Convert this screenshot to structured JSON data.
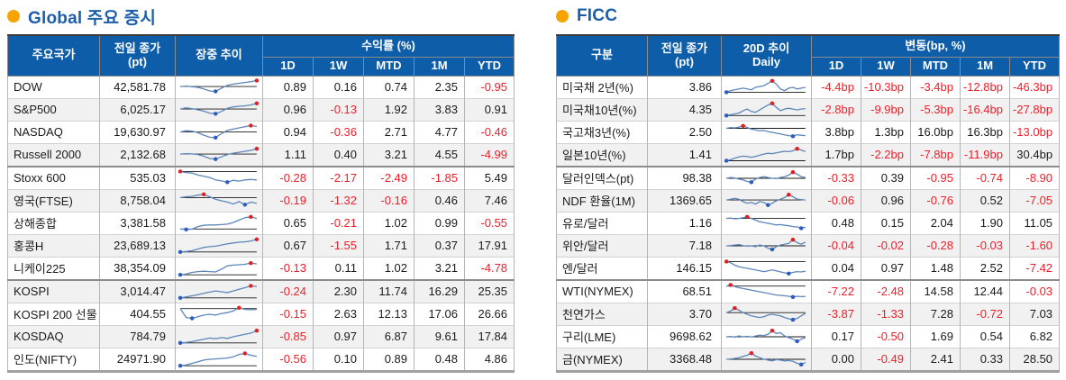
{
  "colors": {
    "header_bg": "#0e5da9",
    "title_blue": "#1c5ea9",
    "bullet_orange": "#f6a500",
    "negative_red": "#f01e28",
    "text_dark": "#1a1a1a",
    "row_shade": "#f1f1f1",
    "spark_line": "#5d86ba",
    "spark_ref": "#1a1a1a",
    "spark_max_dot": "#e02020",
    "spark_min_dot": "#2d5bbf"
  },
  "global": {
    "title": "Global 주요 증시",
    "header": {
      "name": "주요국가",
      "close_lines": [
        "전일 종가",
        "(pt)"
      ],
      "trend_lines": [
        "장중 추이"
      ],
      "group": "수익률 (%)",
      "periods": [
        "1D",
        "1W",
        "MTD",
        "1M",
        "YTD"
      ]
    },
    "rows": [
      {
        "name": "DOW",
        "close": "42,581.78",
        "vals": [
          "0.89",
          "0.16",
          "0.74",
          "2.35",
          "-0.95"
        ],
        "spark": [
          55,
          58,
          54,
          50,
          40,
          28,
          25,
          45,
          62,
          70,
          75,
          80,
          85,
          92
        ]
      },
      {
        "name": "S&P500",
        "close": "6,025.17",
        "vals": [
          "0.96",
          "-0.13",
          "1.92",
          "3.83",
          "0.91"
        ],
        "spark": [
          55,
          62,
          58,
          50,
          42,
          30,
          26,
          40,
          60,
          68,
          72,
          75,
          80,
          90
        ]
      },
      {
        "name": "NASDAQ",
        "close": "19,630.97",
        "vals": [
          "0.94",
          "-0.36",
          "2.71",
          "4.77",
          "-0.46"
        ],
        "spark": [
          52,
          60,
          58,
          48,
          33,
          20,
          18,
          42,
          62,
          70,
          78,
          85,
          92,
          86
        ]
      },
      {
        "name": "Russell 2000",
        "close": "2,132.68",
        "vals": [
          "1.11",
          "0.40",
          "3.21",
          "4.55",
          "-4.99"
        ],
        "spark": [
          55,
          58,
          56,
          52,
          42,
          28,
          24,
          38,
          52,
          60,
          66,
          72,
          78,
          88
        ]
      },
      {
        "name": "Stoxx 600",
        "close": "535.03",
        "vals": [
          "-0.28",
          "-2.17",
          "-2.49",
          "-1.85",
          "5.49"
        ],
        "spark": [
          92,
          85,
          82,
          70,
          62,
          55,
          40,
          34,
          26,
          38,
          33,
          40,
          43,
          40
        ]
      },
      {
        "name": "영국(FTSE)",
        "close": "8,758.04",
        "vals": [
          "-0.19",
          "-1.32",
          "-0.16",
          "0.46",
          "7.46"
        ],
        "spark": [
          70,
          75,
          78,
          85,
          90,
          75,
          60,
          50,
          42,
          30,
          45,
          26,
          42,
          35
        ]
      },
      {
        "name": "상해종합",
        "close": "3,381.58",
        "vals": [
          "0.65",
          "-0.21",
          "1.02",
          "0.99",
          "-0.55"
        ],
        "spark": [
          15,
          12,
          14,
          30,
          38,
          40,
          40,
          42,
          45,
          55,
          70,
          85,
          90,
          80
        ]
      },
      {
        "name": "홍콩H",
        "close": "23,689.13",
        "vals": [
          "0.67",
          "-1.55",
          "1.71",
          "0.37",
          "17.91"
        ],
        "spark": [
          12,
          15,
          20,
          30,
          40,
          45,
          48,
          55,
          62,
          68,
          72,
          75,
          80,
          90
        ]
      },
      {
        "name": "니케이225",
        "close": "38,354.09",
        "vals": [
          "-0.13",
          "0.11",
          "1.02",
          "3.21",
          "-4.78"
        ],
        "spark": [
          10,
          15,
          25,
          30,
          32,
          30,
          28,
          45,
          65,
          70,
          72,
          75,
          82,
          78
        ]
      },
      {
        "name": "KOSPI",
        "close": "3,014.47",
        "vals": [
          "-0.24",
          "2.30",
          "11.74",
          "16.29",
          "25.35"
        ],
        "spark": [
          12,
          18,
          25,
          32,
          40,
          48,
          55,
          50,
          45,
          55,
          65,
          75,
          86,
          82
        ]
      },
      {
        "name": "KOSPI 200 선물",
        "close": "404.55",
        "vals": [
          "-0.15",
          "2.63",
          "12.13",
          "17.06",
          "26.66"
        ],
        "spark": [
          85,
          30,
          25,
          35,
          45,
          50,
          45,
          55,
          60,
          70,
          90,
          80,
          78,
          80
        ]
      },
      {
        "name": "KOSDAQ",
        "close": "784.79",
        "vals": [
          "-0.85",
          "0.97",
          "6.87",
          "9.61",
          "17.84"
        ],
        "spark": [
          12,
          15,
          20,
          28,
          35,
          42,
          38,
          45,
          40,
          50,
          58,
          65,
          72,
          88
        ]
      },
      {
        "name": "인도(NIFTY)",
        "close": "24971.90",
        "vals": [
          "-0.56",
          "0.10",
          "0.89",
          "0.48",
          "4.86"
        ],
        "spark": [
          10,
          15,
          25,
          35,
          45,
          50,
          52,
          55,
          58,
          65,
          80,
          86,
          75,
          68
        ]
      }
    ]
  },
  "ficc": {
    "title": "FICC",
    "header": {
      "name": "구분",
      "close_lines": [
        "전일 종가",
        "(pt)"
      ],
      "trend_lines": [
        "20D 추이",
        "Daily"
      ],
      "group": "변동(bp, %)",
      "periods": [
        "1D",
        "1W",
        "MTD",
        "1M",
        "YTD"
      ]
    },
    "rows": [
      {
        "name": "미국채 2년(%)",
        "close": "3.86",
        "vals": [
          "-4.4bp",
          "-10.3bp",
          "-3.4bp",
          "-12.8bp",
          "-46.3bp"
        ],
        "spark": [
          20,
          30,
          35,
          40,
          45,
          40,
          35,
          50,
          55,
          60,
          75,
          90,
          70,
          40,
          30,
          45,
          50,
          40,
          45,
          50
        ]
      },
      {
        "name": "미국채10년(%)",
        "close": "4.35",
        "vals": [
          "-2.8bp",
          "-9.9bp",
          "-5.3bp",
          "-16.4bp",
          "-27.8bp"
        ],
        "spark": [
          15,
          20,
          25,
          30,
          45,
          55,
          40,
          35,
          50,
          65,
          80,
          90,
          65,
          45,
          55,
          60,
          55,
          50,
          55,
          58
        ]
      },
      {
        "name": "국고채3년(%)",
        "close": "2.50",
        "vals": [
          "3.8bp",
          "1.3bp",
          "16.0bp",
          "16.3bp",
          "-13.0bp"
        ],
        "spark": [
          75,
          80,
          78,
          82,
          90,
          80,
          70,
          65,
          60,
          62,
          55,
          50,
          45,
          40,
          35,
          30,
          26,
          35,
          32,
          30
        ]
      },
      {
        "name": "일본10년(%)",
        "close": "1.41",
        "vals": [
          "1.7bp",
          "-2.2bp",
          "-7.8bp",
          "-11.9bp",
          "30.4bp"
        ],
        "spark": [
          14,
          20,
          30,
          38,
          42,
          40,
          35,
          40,
          48,
          55,
          60,
          58,
          62,
          68,
          72,
          70,
          75,
          88,
          80,
          70
        ]
      },
      {
        "name": "달러인덱스(pt)",
        "close": "98.38",
        "vals": [
          "-0.33",
          "0.39",
          "-0.95",
          "-0.74",
          "-8.90"
        ],
        "spark": [
          50,
          55,
          52,
          45,
          40,
          30,
          26,
          45,
          55,
          60,
          55,
          50,
          48,
          55,
          60,
          70,
          88,
          75,
          60,
          55
        ]
      },
      {
        "name": "NDF 환율(1M)",
        "close": "1369.65",
        "vals": [
          "-0.06",
          "0.96",
          "-0.76",
          "0.52",
          "-7.05"
        ],
        "spark": [
          55,
          60,
          65,
          60,
          45,
          35,
          40,
          30,
          45,
          40,
          24,
          35,
          50,
          60,
          70,
          88,
          75,
          60,
          58,
          55
        ]
      },
      {
        "name": "유로/달러",
        "close": "1.16",
        "vals": [
          "0.48",
          "0.15",
          "2.04",
          "1.90",
          "11.05"
        ],
        "spark": [
          80,
          82,
          78,
          80,
          85,
          90,
          80,
          70,
          60,
          55,
          50,
          45,
          40,
          42,
          38,
          35,
          30,
          28,
          20,
          26
        ]
      },
      {
        "name": "위안/달러",
        "close": "7.18",
        "vals": [
          "-0.04",
          "-0.02",
          "-0.28",
          "-0.03",
          "-1.60"
        ],
        "spark": [
          50,
          52,
          55,
          58,
          52,
          48,
          50,
          45,
          55,
          50,
          35,
          28,
          45,
          55,
          60,
          65,
          88,
          70,
          60,
          72
        ]
      },
      {
        "name": "엔/달러",
        "close": "146.15",
        "vals": [
          "0.04",
          "0.97",
          "1.48",
          "2.52",
          "-7.42"
        ],
        "spark": [
          92,
          85,
          70,
          60,
          55,
          50,
          45,
          40,
          35,
          30,
          35,
          40,
          35,
          28,
          22,
          18,
          25,
          30,
          28,
          32
        ]
      },
      {
        "name": "WTI(NYMEX)",
        "close": "68.51",
        "vals": [
          "-7.22",
          "-2.48",
          "14.58",
          "12.44",
          "-0.03"
        ],
        "spark": [
          85,
          92,
          82,
          75,
          70,
          65,
          60,
          55,
          50,
          45,
          40,
          35,
          30,
          28,
          25,
          22,
          18,
          22,
          20,
          21
        ]
      },
      {
        "name": "천연가스",
        "close": "3.70",
        "vals": [
          "-3.87",
          "-1.33",
          "7.28",
          "-0.72",
          "7.03"
        ],
        "spark": [
          60,
          70,
          88,
          75,
          60,
          50,
          40,
          35,
          30,
          35,
          45,
          50,
          45,
          40,
          30,
          22,
          16,
          25,
          40,
          55
        ]
      },
      {
        "name": "구리(LME)",
        "close": "9698.62",
        "vals": [
          "0.17",
          "-0.50",
          "1.69",
          "0.54",
          "6.82"
        ],
        "spark": [
          50,
          52,
          48,
          55,
          50,
          53,
          49,
          55,
          60,
          58,
          65,
          88,
          70,
          75,
          55,
          45,
          35,
          22,
          35,
          45
        ]
      },
      {
        "name": "금(NYMEX)",
        "close": "3368.48",
        "vals": [
          "0.00",
          "-0.49",
          "2.41",
          "0.33",
          "28.50"
        ],
        "spark": [
          50,
          52,
          55,
          60,
          68,
          75,
          88,
          70,
          60,
          50,
          45,
          40,
          48,
          45,
          40,
          42,
          38,
          25,
          18,
          30
        ]
      }
    ]
  }
}
